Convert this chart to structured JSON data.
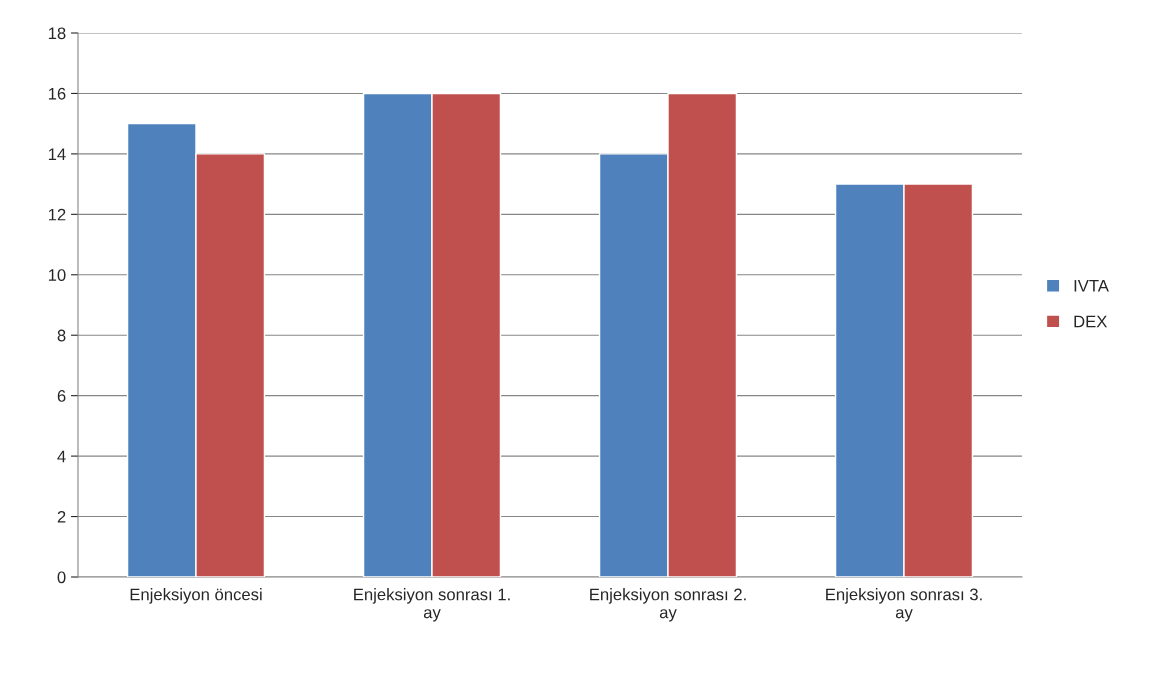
{
  "chart_data": {
    "type": "bar",
    "categories": [
      "Enjeksiyon öncesi",
      "Enjeksiyon sonrası 1. ay",
      "Enjeksiyon sonrası 2. ay",
      "Enjeksiyon sonrası 3. ay"
    ],
    "series": [
      {
        "name": "IVTA",
        "color": "#4f81bd",
        "values": [
          15,
          16,
          14,
          13
        ]
      },
      {
        "name": "DEX",
        "color": "#c0504d",
        "values": [
          14,
          16,
          16,
          13
        ]
      }
    ],
    "ylim": [
      0,
      18
    ],
    "yticks": [
      0,
      2,
      4,
      6,
      8,
      10,
      12,
      14,
      16,
      18
    ],
    "grid": "y",
    "legend": "right"
  }
}
